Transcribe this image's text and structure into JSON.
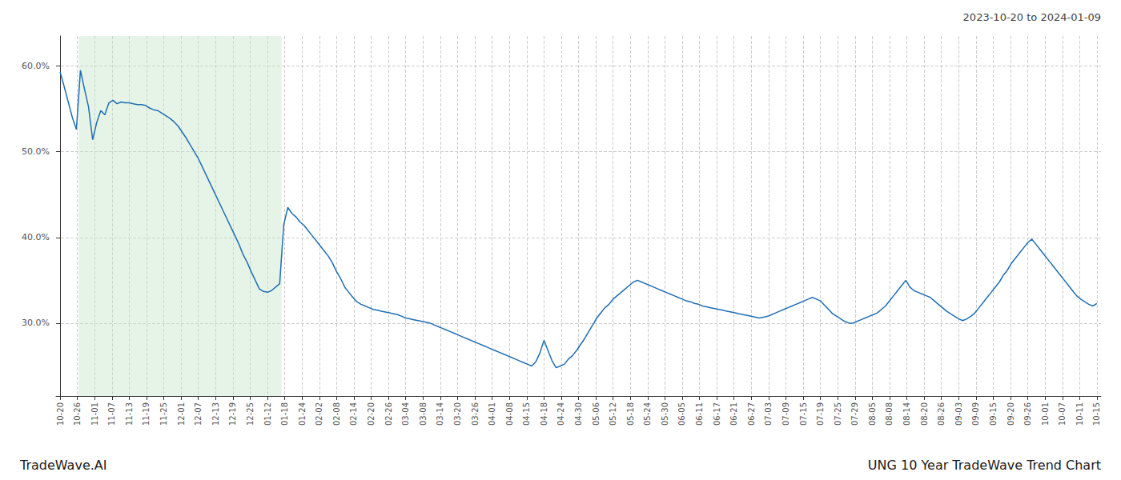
{
  "chart_data": {
    "type": "line",
    "title": "UNG 10 Year TradeWave Trend Chart",
    "subtitle": "2023-10-20 to 2024-01-09",
    "annotations": [
      "TradeWave.AI"
    ],
    "color": "#1f6eb5",
    "grid": true,
    "highlight": {
      "start": 5,
      "end": 54,
      "color": "#c8e6c9"
    },
    "xlim": [
      -1,
      256
    ],
    "xticks": [
      {
        "value": 0,
        "label": "10-20"
      },
      {
        "value": 4.25,
        "label": "10-26"
      },
      {
        "value": 8.5,
        "label": "11-01"
      },
      {
        "value": 12.75,
        "label": "11-07"
      },
      {
        "value": 17,
        "label": "11-13"
      },
      {
        "value": 21.25,
        "label": "11-19"
      },
      {
        "value": 25.5,
        "label": "11-25"
      },
      {
        "value": 29.75,
        "label": "12-01"
      },
      {
        "value": 34,
        "label": "12-07"
      },
      {
        "value": 38.25,
        "label": "12-13"
      },
      {
        "value": 42.5,
        "label": "12-19"
      },
      {
        "value": 46.75,
        "label": "12-25"
      },
      {
        "value": 51,
        "label": "01-12"
      },
      {
        "value": 55.25,
        "label": "01-18"
      },
      {
        "value": 59.5,
        "label": "01-24"
      },
      {
        "value": 63.75,
        "label": "02-02"
      },
      {
        "value": 68,
        "label": "02-08"
      },
      {
        "value": 72.25,
        "label": "02-14"
      },
      {
        "value": 76.5,
        "label": "02-20"
      },
      {
        "value": 80.75,
        "label": "02-26"
      },
      {
        "value": 85,
        "label": "03-04"
      },
      {
        "value": 89.25,
        "label": "03-08"
      },
      {
        "value": 93.5,
        "label": "03-14"
      },
      {
        "value": 97.75,
        "label": "03-20"
      },
      {
        "value": 102,
        "label": "03-26"
      },
      {
        "value": 106.25,
        "label": "04-01"
      },
      {
        "value": 110.5,
        "label": "04-08"
      },
      {
        "value": 114.75,
        "label": "04-15"
      },
      {
        "value": 119,
        "label": "04-18"
      },
      {
        "value": 123.25,
        "label": "04-24"
      },
      {
        "value": 127.5,
        "label": "04-30"
      },
      {
        "value": 131.75,
        "label": "05-06"
      },
      {
        "value": 136,
        "label": "05-12"
      },
      {
        "value": 140.25,
        "label": "05-18"
      },
      {
        "value": 144.5,
        "label": "05-24"
      },
      {
        "value": 148.75,
        "label": "05-30"
      },
      {
        "value": 153,
        "label": "06-05"
      },
      {
        "value": 157.25,
        "label": "06-11"
      },
      {
        "value": 161.5,
        "label": "06-17"
      },
      {
        "value": 165.75,
        "label": "06-21"
      },
      {
        "value": 170,
        "label": "06-27"
      },
      {
        "value": 174.25,
        "label": "07-03"
      },
      {
        "value": 178.5,
        "label": "07-09"
      },
      {
        "value": 182.75,
        "label": "07-15"
      },
      {
        "value": 187,
        "label": "07-19"
      },
      {
        "value": 191.25,
        "label": "07-25"
      },
      {
        "value": 195.5,
        "label": "07-29"
      },
      {
        "value": 199.75,
        "label": "08-05"
      },
      {
        "value": 204,
        "label": "08-08"
      },
      {
        "value": 208.25,
        "label": "08-14"
      },
      {
        "value": 212.5,
        "label": "08-20"
      },
      {
        "value": 216.75,
        "label": "08-26"
      },
      {
        "value": 221,
        "label": "09-03"
      },
      {
        "value": 225.25,
        "label": "09-09"
      },
      {
        "value": 229.5,
        "label": "09-15"
      },
      {
        "value": 233.75,
        "label": "09-20"
      },
      {
        "value": 238,
        "label": "09-26"
      },
      {
        "value": 242.25,
        "label": "10-01"
      },
      {
        "value": 246.5,
        "label": "10-07"
      },
      {
        "value": 250.75,
        "label": "10-11"
      },
      {
        "value": 255,
        "label": "10-15"
      }
    ],
    "ylim": [
      0.215,
      0.635
    ],
    "yticks": [
      {
        "value": 0.3,
        "label": "30.0%"
      },
      {
        "value": 0.4,
        "label": "40.0%"
      },
      {
        "value": 0.5,
        "label": "50.0%"
      },
      {
        "value": 0.6,
        "label": "60.0%"
      }
    ],
    "values": [
      0.593,
      0.576,
      0.558,
      0.54,
      0.526,
      0.595,
      0.573,
      0.552,
      0.514,
      0.534,
      0.548,
      0.543,
      0.557,
      0.56,
      0.556,
      0.558,
      0.557,
      0.557,
      0.556,
      0.555,
      0.555,
      0.554,
      0.551,
      0.549,
      0.548,
      0.545,
      0.542,
      0.539,
      0.535,
      0.53,
      0.523,
      0.516,
      0.508,
      0.5,
      0.492,
      0.482,
      0.472,
      0.462,
      0.452,
      0.442,
      0.432,
      0.422,
      0.412,
      0.402,
      0.392,
      0.38,
      0.371,
      0.36,
      0.35,
      0.34,
      0.337,
      0.336,
      0.338,
      0.342,
      0.346,
      0.415,
      0.435,
      0.428,
      0.424,
      0.418,
      0.414,
      0.408,
      0.402,
      0.396,
      0.39,
      0.384,
      0.378,
      0.37,
      0.36,
      0.352,
      0.342,
      0.336,
      0.33,
      0.325,
      0.322,
      0.32,
      0.318,
      0.316,
      0.315,
      0.314,
      0.313,
      0.312,
      0.311,
      0.31,
      0.308,
      0.306,
      0.305,
      0.304,
      0.303,
      0.302,
      0.301,
      0.3,
      0.298,
      0.296,
      0.294,
      0.292,
      0.29,
      0.288,
      0.286,
      0.284,
      0.282,
      0.28,
      0.278,
      0.276,
      0.274,
      0.272,
      0.27,
      0.268,
      0.266,
      0.264,
      0.262,
      0.26,
      0.258,
      0.256,
      0.254,
      0.252,
      0.25,
      0.255,
      0.265,
      0.28,
      0.268,
      0.256,
      0.248,
      0.25,
      0.252,
      0.258,
      0.262,
      0.268,
      0.275,
      0.282,
      0.29,
      0.298,
      0.306,
      0.312,
      0.318,
      0.322,
      0.328,
      0.332,
      0.336,
      0.34,
      0.344,
      0.348,
      0.35,
      0.348,
      0.346,
      0.344,
      0.342,
      0.34,
      0.338,
      0.336,
      0.334,
      0.332,
      0.33,
      0.328,
      0.326,
      0.325,
      0.323,
      0.322,
      0.32,
      0.319,
      0.318,
      0.317,
      0.316,
      0.315,
      0.314,
      0.313,
      0.312,
      0.311,
      0.31,
      0.309,
      0.308,
      0.307,
      0.306,
      0.307,
      0.308,
      0.31,
      0.312,
      0.314,
      0.316,
      0.318,
      0.32,
      0.322,
      0.324,
      0.326,
      0.328,
      0.33,
      0.328,
      0.326,
      0.321,
      0.316,
      0.311,
      0.308,
      0.305,
      0.302,
      0.3,
      0.3,
      0.302,
      0.304,
      0.306,
      0.308,
      0.31,
      0.312,
      0.316,
      0.32,
      0.326,
      0.332,
      0.338,
      0.344,
      0.35,
      0.342,
      0.338,
      0.336,
      0.334,
      0.332,
      0.33,
      0.326,
      0.322,
      0.318,
      0.314,
      0.311,
      0.308,
      0.305,
      0.303,
      0.305,
      0.308,
      0.312,
      0.318,
      0.324,
      0.33,
      0.336,
      0.342,
      0.348,
      0.356,
      0.362,
      0.37,
      0.376,
      0.382,
      0.388,
      0.394,
      0.398,
      0.392,
      0.386,
      0.38,
      0.374,
      0.368,
      0.362,
      0.356,
      0.35,
      0.344,
      0.338,
      0.332,
      0.328,
      0.325,
      0.322,
      0.32,
      0.323
    ]
  }
}
